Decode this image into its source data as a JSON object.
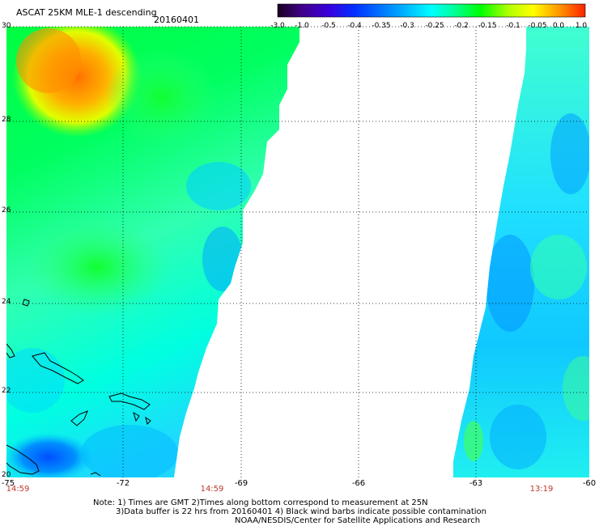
{
  "title": "ASCAT 25KM MLE-1 descending",
  "date": "20160401",
  "colorbar": {
    "labels": [
      "-3.0",
      "-1.0",
      "-0.5",
      "-0.4",
      "-0.35",
      "-0.3",
      "-0.25",
      "-0.2",
      "-0.15",
      "-0.1",
      "-0.05",
      "0.0",
      "1.0"
    ],
    "colors": [
      "#1a0020",
      "#40008a",
      "#3800e0",
      "#0030ff",
      "#0070ff",
      "#00b0ff",
      "#00ffff",
      "#00ff90",
      "#00ff00",
      "#b0ff00",
      "#ffff00",
      "#ff9000",
      "#ff2000"
    ]
  },
  "axes": {
    "lat_labels": [
      "30",
      "28",
      "26",
      "24",
      "22",
      "20"
    ],
    "lon_labels": [
      "-75",
      "-72",
      "-69",
      "-66",
      "-63",
      "-60"
    ],
    "lat_range": [
      20,
      30
    ],
    "lon_range": [
      -75,
      -60
    ]
  },
  "times": [
    "14:59",
    "14:59",
    "13:19"
  ],
  "notes": [
    "Note: 1) Times are GMT 2)Times along bottom correspond to measurement at 25N",
    "3)Data buffer is 22 hrs from 20160401 4) Black wind barbs indicate possible contamination",
    "NOAA/NESDIS/Center for Satellite Applications and Research"
  ]
}
